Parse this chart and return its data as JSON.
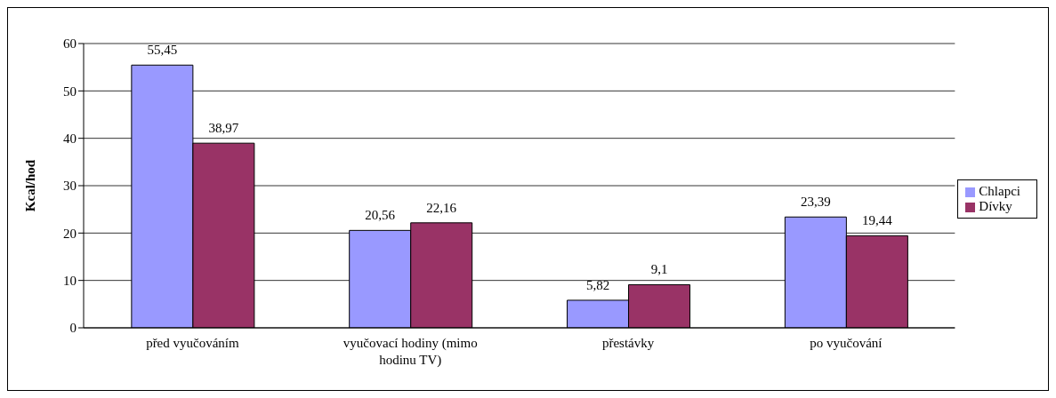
{
  "chart_data": {
    "type": "bar",
    "ylabel": "Kcal/hod",
    "categories": [
      "před vyučováním",
      "vyučovací hodiny (mimo hodinu TV)",
      "přestávky",
      "po vyučování"
    ],
    "series": [
      {
        "name": "Chlapci",
        "color": "#9999ff",
        "values": [
          55.45,
          20.56,
          5.82,
          23.39
        ],
        "value_labels": [
          "55,45",
          "20,56",
          "5,82",
          "23,39"
        ]
      },
      {
        "name": "Dívky",
        "color": "#993366",
        "values": [
          38.97,
          22.16,
          9.1,
          19.44
        ],
        "value_labels": [
          "38,97",
          "22,16",
          "9,1",
          "19,44"
        ]
      }
    ],
    "ylim": [
      0,
      60
    ],
    "yticks": [
      0,
      10,
      20,
      30,
      40,
      50,
      60
    ],
    "grid": "y",
    "legend": "right"
  }
}
